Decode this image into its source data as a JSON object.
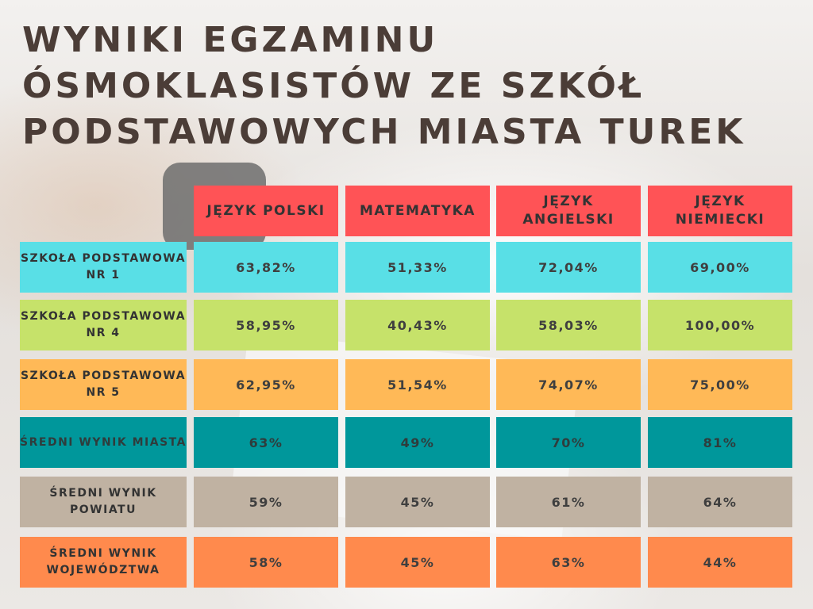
{
  "title_lines": [
    "WYNIKI EGZAMINU",
    "ÓSMOKLASISTÓW ZE SZKÓŁ",
    "PODSTAWOWYCH MIASTA TUREK"
  ],
  "chart_data": {
    "type": "table",
    "columns": [
      "JĘZYK POLSKI",
      "MATEMATYKA",
      "JĘZYK ANGIELSKI",
      "JĘZYK NIEMIECKI"
    ],
    "rows": [
      {
        "label": "SZKOŁA PODSTAWOWA NR 1",
        "values": [
          "63,82%",
          "51,33%",
          "72,04%",
          "69,00%"
        ],
        "color": "#59dfe6"
      },
      {
        "label": "SZKOŁA PODSTAWOWA NR 4",
        "values": [
          "58,95%",
          "40,43%",
          "58,03%",
          "100,00%"
        ],
        "color": "#c6e26a"
      },
      {
        "label": "SZKOŁA PODSTAWOWA NR 5",
        "values": [
          "62,95%",
          "51,54%",
          "74,07%",
          "75,00%"
        ],
        "color": "#ffb957"
      },
      {
        "label": "ŚREDNI WYNIK MIASTA",
        "values": [
          "63%",
          "49%",
          "70%",
          "81%"
        ],
        "color": "#00979b"
      },
      {
        "label": "ŚREDNI WYNIK POWIATU",
        "values": [
          "59%",
          "45%",
          "61%",
          "64%"
        ],
        "color": "#c0b2a2"
      },
      {
        "label": "ŚREDNI WYNIK WOJEWÓDZTWA",
        "values": [
          "58%",
          "45%",
          "63%",
          "44%"
        ],
        "color": "#ff8a4d"
      }
    ],
    "header_color": "#ff5356"
  },
  "colors": {
    "title": "#4b3d37"
  }
}
